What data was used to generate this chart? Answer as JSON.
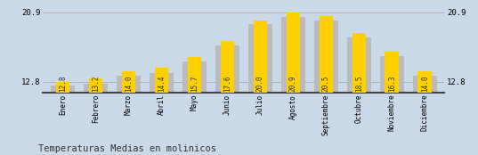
{
  "categories": [
    "Enero",
    "Febrero",
    "Marzo",
    "Abril",
    "Mayo",
    "Junio",
    "Julio",
    "Agosto",
    "Septiembre",
    "Octubre",
    "Noviembre",
    "Diciembre"
  ],
  "values": [
    12.8,
    13.2,
    14.0,
    14.4,
    15.7,
    17.6,
    20.0,
    20.9,
    20.5,
    18.5,
    16.3,
    14.0
  ],
  "gray_values": [
    12.4,
    12.6,
    13.5,
    13.8,
    15.2,
    17.0,
    19.5,
    20.4,
    20.0,
    18.0,
    15.8,
    13.5
  ],
  "bar_color_yellow": "#FFD000",
  "bar_color_gray": "#BBBBBB",
  "background_color": "#C9D9E8",
  "title": "Temperaturas Medias en molinicos",
  "ylim_min": 11.5,
  "ylim_max": 21.8,
  "ytick_lo": 12.8,
  "ytick_hi": 20.9,
  "grid_color": "#AAAAAA",
  "value_fontsize": 5.5,
  "label_fontsize": 5.5,
  "title_fontsize": 7.5
}
